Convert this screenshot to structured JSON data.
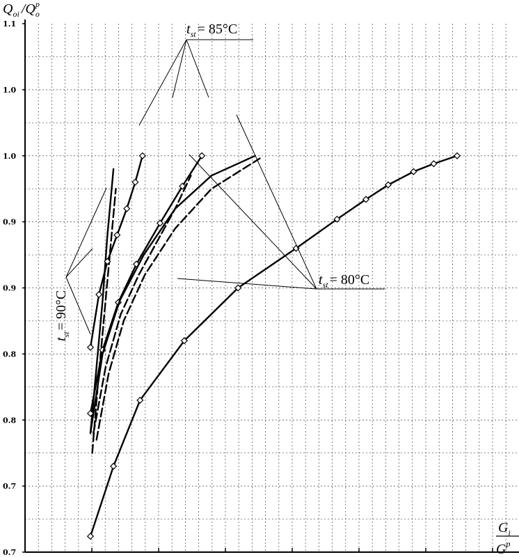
{
  "chart_data": {
    "type": "line",
    "title": "",
    "ylabel": {
      "main": "Q",
      "sub1": "oi",
      "sep": "/",
      "main2": "Q",
      "sub2": "o",
      "sup2": "p"
    },
    "xlabel": {
      "num": "G",
      "num_sub": "i",
      "den": "G",
      "den_sup": "p"
    },
    "y_tick_labels": [
      "0.7",
      "0.7",
      "0.8",
      "0.8",
      "0.9",
      "0.9",
      "1.0",
      "1.0",
      "1.1"
    ],
    "grid": true,
    "annotations": [
      {
        "id": "t85",
        "t": "t",
        "sub": "st",
        "text": "= 85°C"
      },
      {
        "id": "t80",
        "t": "t",
        "sub": "st",
        "text": "= 80°C"
      },
      {
        "id": "t90",
        "t": "t",
        "sub": "st",
        "text": "= 90°C"
      }
    ],
    "series": [
      {
        "group": "90",
        "style": "solid",
        "markers": false,
        "x": [
          2.0,
          2.1,
          2.2,
          2.28,
          2.38
        ],
        "y": [
          0.79,
          0.84,
          0.89,
          0.94,
          0.99
        ]
      },
      {
        "group": "90",
        "style": "dashed",
        "markers": false,
        "x": [
          2.03,
          2.12,
          2.22,
          2.32,
          2.42
        ],
        "y": [
          0.775,
          0.825,
          0.875,
          0.925,
          0.975
        ]
      },
      {
        "group": "90",
        "style": "solid",
        "markers": true,
        "x": [
          2.0,
          2.14,
          2.28,
          2.44,
          2.6,
          2.74,
          2.86
        ],
        "y": [
          0.855,
          0.895,
          0.92,
          0.94,
          0.96,
          0.98,
          1.0
        ]
      },
      {
        "group": "85",
        "style": "solid",
        "markers": true,
        "x": [
          2.0,
          2.2,
          2.46,
          2.76,
          3.15,
          3.52,
          3.84
        ],
        "y": [
          0.805,
          0.853,
          0.889,
          0.918,
          0.949,
          0.977,
          1.0
        ]
      },
      {
        "group": "85",
        "style": "dashed",
        "markers": false,
        "x": [
          2.05,
          2.25,
          2.5,
          2.8,
          3.1,
          3.4,
          3.66
        ],
        "y": [
          0.79,
          0.84,
          0.88,
          0.91,
          0.935,
          0.96,
          0.985
        ]
      },
      {
        "group": "85",
        "style": "solid",
        "markers": false,
        "x": [
          2.0,
          2.2,
          2.48,
          2.88,
          3.4,
          4.0,
          4.9
        ],
        "y": [
          0.79,
          0.85,
          0.89,
          0.925,
          0.96,
          0.985,
          1.0
        ]
      },
      {
        "group": "80",
        "style": "dashed",
        "markers": false,
        "x": [
          2.1,
          2.3,
          2.55,
          2.9,
          3.4,
          4.0,
          5.0
        ],
        "y": [
          0.785,
          0.835,
          0.875,
          0.91,
          0.945,
          0.975,
          0.998
        ]
      },
      {
        "group": "80",
        "style": "solid",
        "markers": true,
        "x": [
          2.0,
          2.38,
          2.82,
          3.55,
          4.55,
          5.75,
          7.0,
          8.0,
          9.0,
          10.2,
          11.5,
          13.0
        ],
        "y": [
          0.712,
          0.765,
          0.815,
          0.86,
          0.9,
          0.93,
          0.952,
          0.967,
          0.978,
          0.988,
          0.994,
          1.0
        ]
      }
    ]
  }
}
